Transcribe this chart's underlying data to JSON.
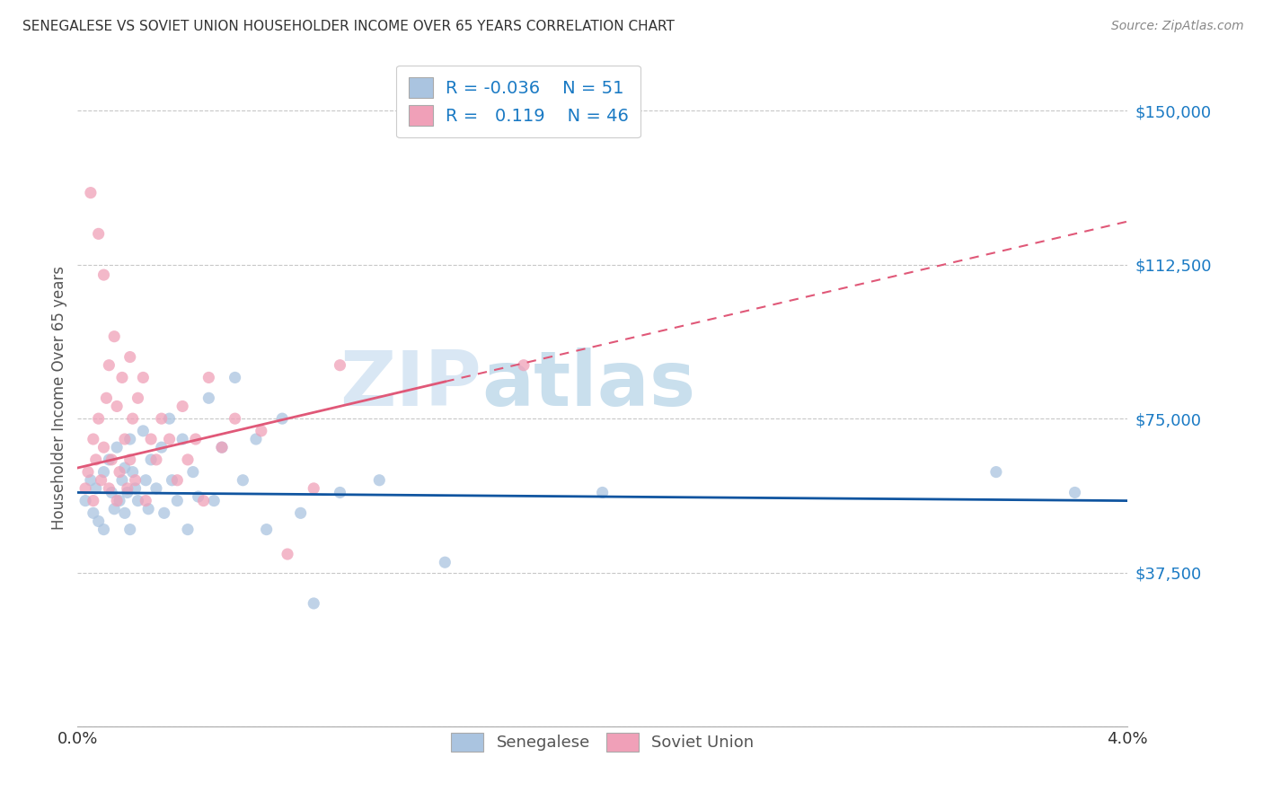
{
  "title": "SENEGALESE VS SOVIET UNION HOUSEHOLDER INCOME OVER 65 YEARS CORRELATION CHART",
  "source": "Source: ZipAtlas.com",
  "ylabel": "Householder Income Over 65 years",
  "xlim": [
    0.0,
    0.04
  ],
  "ylim": [
    0,
    160000
  ],
  "yticks": [
    0,
    37500,
    75000,
    112500,
    150000
  ],
  "ytick_labels": [
    "",
    "$37,500",
    "$75,000",
    "$112,500",
    "$150,000"
  ],
  "xticks": [
    0.0,
    0.005,
    0.01,
    0.015,
    0.02,
    0.025,
    0.03,
    0.035,
    0.04
  ],
  "xtick_labels": [
    "0.0%",
    "",
    "",
    "",
    "",
    "",
    "",
    "",
    "4.0%"
  ],
  "background_color": "#ffffff",
  "grid_color": "#c8c8c8",
  "senegalese_color": "#aac4e0",
  "soviet_color": "#f0a0b8",
  "senegalese_line_color": "#1055a0",
  "soviet_line_color": "#e05878",
  "legend_R_senegalese": "-0.036",
  "legend_N_senegalese": "51",
  "legend_R_soviet": "0.119",
  "legend_N_soviet": "46",
  "watermark_zip": "ZIP",
  "watermark_atlas": "atlas",
  "senegalese_x": [
    0.0003,
    0.0005,
    0.0006,
    0.0007,
    0.0008,
    0.001,
    0.001,
    0.0012,
    0.0013,
    0.0014,
    0.0015,
    0.0016,
    0.0017,
    0.0018,
    0.0018,
    0.0019,
    0.002,
    0.002,
    0.0021,
    0.0022,
    0.0023,
    0.0025,
    0.0026,
    0.0027,
    0.0028,
    0.003,
    0.0032,
    0.0033,
    0.0035,
    0.0036,
    0.0038,
    0.004,
    0.0042,
    0.0044,
    0.0046,
    0.005,
    0.0052,
    0.0055,
    0.006,
    0.0063,
    0.0068,
    0.0072,
    0.0078,
    0.0085,
    0.009,
    0.01,
    0.0115,
    0.014,
    0.02,
    0.035,
    0.038
  ],
  "senegalese_y": [
    55000,
    60000,
    52000,
    58000,
    50000,
    62000,
    48000,
    65000,
    57000,
    53000,
    68000,
    55000,
    60000,
    52000,
    63000,
    57000,
    70000,
    48000,
    62000,
    58000,
    55000,
    72000,
    60000,
    53000,
    65000,
    58000,
    68000,
    52000,
    75000,
    60000,
    55000,
    70000,
    48000,
    62000,
    56000,
    80000,
    55000,
    68000,
    85000,
    60000,
    70000,
    48000,
    75000,
    52000,
    30000,
    57000,
    60000,
    40000,
    57000,
    62000,
    57000
  ],
  "soviet_x": [
    0.0003,
    0.0004,
    0.0005,
    0.0006,
    0.0006,
    0.0007,
    0.0008,
    0.0008,
    0.0009,
    0.001,
    0.001,
    0.0011,
    0.0012,
    0.0012,
    0.0013,
    0.0014,
    0.0015,
    0.0015,
    0.0016,
    0.0017,
    0.0018,
    0.0019,
    0.002,
    0.002,
    0.0021,
    0.0022,
    0.0023,
    0.0025,
    0.0026,
    0.0028,
    0.003,
    0.0032,
    0.0035,
    0.0038,
    0.004,
    0.0042,
    0.0045,
    0.0048,
    0.005,
    0.0055,
    0.006,
    0.007,
    0.008,
    0.009,
    0.01,
    0.017
  ],
  "soviet_y": [
    58000,
    62000,
    130000,
    70000,
    55000,
    65000,
    120000,
    75000,
    60000,
    110000,
    68000,
    80000,
    58000,
    88000,
    65000,
    95000,
    55000,
    78000,
    62000,
    85000,
    70000,
    58000,
    90000,
    65000,
    75000,
    60000,
    80000,
    85000,
    55000,
    70000,
    65000,
    75000,
    70000,
    60000,
    78000,
    65000,
    70000,
    55000,
    85000,
    68000,
    75000,
    72000,
    42000,
    58000,
    88000,
    88000
  ]
}
